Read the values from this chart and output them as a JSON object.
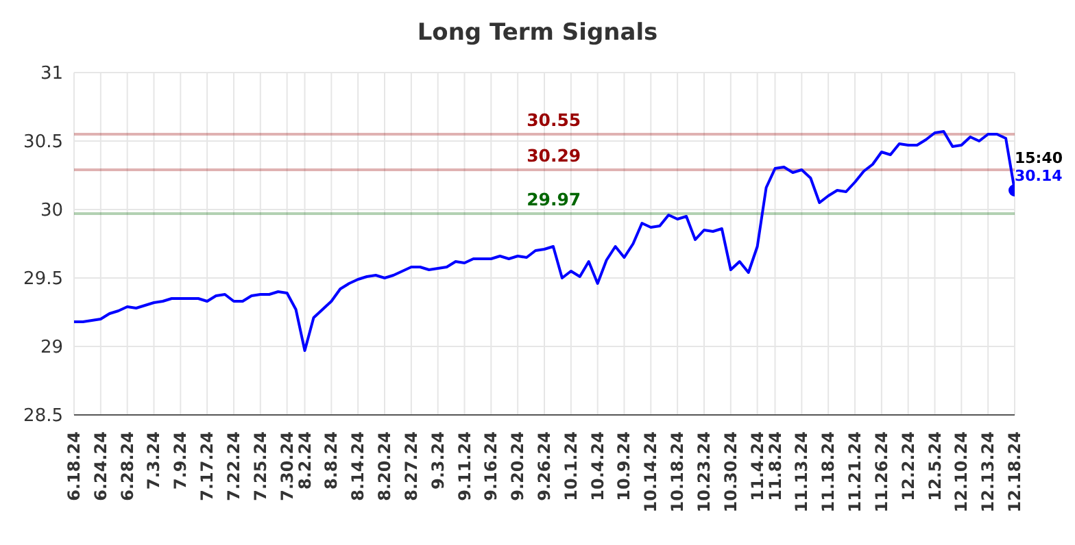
{
  "chart_data": {
    "type": "line",
    "title": "Long Term Signals",
    "categories": [
      "6.18.24",
      null,
      null,
      "6.24.24",
      null,
      null,
      "6.28.24",
      null,
      null,
      "7.3.24",
      null,
      null,
      "7.9.24",
      null,
      null,
      "7.17.24",
      null,
      null,
      "7.22.24",
      null,
      null,
      "7.25.24",
      null,
      null,
      "7.30.24",
      null,
      "8.2.24",
      null,
      null,
      "8.8.24",
      null,
      null,
      "8.14.24",
      null,
      null,
      "8.20.24",
      null,
      null,
      "8.27.24",
      null,
      null,
      "9.3.24",
      null,
      null,
      "9.11.24",
      null,
      null,
      "9.16.24",
      null,
      null,
      "9.20.24",
      null,
      null,
      "9.26.24",
      null,
      null,
      "10.1.24",
      null,
      null,
      "10.4.24",
      null,
      null,
      "10.9.24",
      null,
      null,
      "10.14.24",
      null,
      null,
      "10.18.24",
      null,
      null,
      "10.23.24",
      null,
      null,
      "10.30.24",
      null,
      null,
      "11.4.24",
      null,
      "11.8.24",
      null,
      null,
      "11.13.24",
      null,
      null,
      "11.18.24",
      null,
      null,
      "11.21.24",
      null,
      null,
      "11.26.24",
      null,
      null,
      "12.2.24",
      null,
      null,
      "12.5.24",
      null,
      null,
      "12.10.24",
      null,
      null,
      "12.13.24",
      null,
      null,
      "12.18.24"
    ],
    "series": [
      {
        "color": "#0000ff",
        "values": [
          29.18,
          29.18,
          29.19,
          29.2,
          29.24,
          29.26,
          29.29,
          29.28,
          29.3,
          29.32,
          29.33,
          29.35,
          29.35,
          29.35,
          29.35,
          29.33,
          29.37,
          29.38,
          29.33,
          29.33,
          29.37,
          29.38,
          29.38,
          29.4,
          29.39,
          29.27,
          28.97,
          29.21,
          29.27,
          29.33,
          29.42,
          29.46,
          29.49,
          29.51,
          29.52,
          29.5,
          29.52,
          29.55,
          29.58,
          29.58,
          29.56,
          29.57,
          29.58,
          29.62,
          29.61,
          29.64,
          29.64,
          29.64,
          29.66,
          29.64,
          29.66,
          29.65,
          29.7,
          29.71,
          29.73,
          29.5,
          29.55,
          29.51,
          29.62,
          29.46,
          29.63,
          29.73,
          29.65,
          29.75,
          29.9,
          29.87,
          29.88,
          29.96,
          29.93,
          29.95,
          29.78,
          29.85,
          29.84,
          29.86,
          29.56,
          29.62,
          29.54,
          29.73,
          30.16,
          30.3,
          30.31,
          30.27,
          30.29,
          30.23,
          30.05,
          30.1,
          30.14,
          30.13,
          30.2,
          30.28,
          30.33,
          30.42,
          30.4,
          30.48,
          30.47,
          30.47,
          30.51,
          30.56,
          30.57,
          30.46,
          30.47,
          30.53,
          30.5,
          30.55,
          30.55,
          30.52,
          30.14
        ],
        "value_labels": [
          null,
          null,
          null,
          null,
          null,
          null,
          null,
          null,
          null,
          null,
          null,
          null,
          null,
          null,
          null,
          null,
          null,
          null,
          null,
          null,
          null,
          null,
          null,
          null,
          null,
          null,
          null,
          null,
          null,
          null,
          null,
          null,
          null,
          null,
          null,
          null,
          null,
          null,
          null,
          null,
          null,
          null,
          null,
          null,
          null,
          null,
          null,
          null,
          null,
          null,
          null,
          null,
          null,
          null,
          null,
          null,
          null,
          null,
          null,
          null,
          null,
          null,
          null,
          null,
          null,
          null,
          null,
          null,
          null,
          null,
          null,
          null,
          null,
          null,
          null,
          null,
          null,
          null,
          null,
          null,
          null,
          null,
          null,
          null,
          null,
          null,
          null,
          null,
          null,
          null,
          null,
          null,
          null,
          null,
          null,
          null,
          null,
          null,
          null,
          null,
          null,
          null,
          null,
          null,
          null,
          null,
          "30.14"
        ]
      }
    ],
    "annotations": [
      "15:40"
    ],
    "ref_lines": [
      {
        "axis": "y",
        "value": 30.55,
        "label": "30.55",
        "color": "#990000"
      },
      {
        "axis": "y",
        "value": 30.29,
        "label": "30.29",
        "color": "#990000"
      },
      {
        "axis": "y",
        "value": 29.97,
        "label": "29.97",
        "color": "#006600"
      }
    ],
    "ylim": [
      28.5,
      31
    ],
    "yticks": [
      28.5,
      29,
      29.5,
      30,
      30.5,
      31
    ],
    "grid": true,
    "legend": false,
    "marker": "none"
  }
}
